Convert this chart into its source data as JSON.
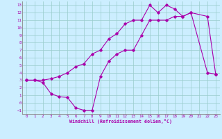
{
  "xlabel": "Windchill (Refroidissement éolien,°C)",
  "bg_color": "#cceeff",
  "line_color": "#aa00aa",
  "grid_color": "#99cccc",
  "xlim": [
    -0.5,
    23.5
  ],
  "ylim": [
    -1.5,
    13.5
  ],
  "xticks": [
    0,
    1,
    2,
    3,
    4,
    5,
    6,
    7,
    8,
    9,
    10,
    11,
    12,
    13,
    14,
    15,
    16,
    17,
    18,
    19,
    20,
    21,
    22,
    23
  ],
  "yticks": [
    -1,
    0,
    1,
    2,
    3,
    4,
    5,
    6,
    7,
    8,
    9,
    10,
    11,
    12,
    13
  ],
  "line1_x": [
    0,
    1,
    2,
    3,
    4,
    5,
    6,
    7,
    8,
    9,
    10,
    11,
    12,
    13,
    14,
    15,
    16,
    17,
    18,
    19,
    20,
    22,
    23
  ],
  "line1_y": [
    3,
    3,
    2.7,
    1.2,
    0.8,
    0.7,
    -0.7,
    -1.0,
    -1.0,
    3.5,
    5.5,
    6.5,
    7.0,
    7.0,
    9.0,
    11.0,
    11.0,
    11.0,
    11.5,
    11.5,
    12.0,
    4.0,
    3.8
  ],
  "line2_x": [
    0,
    1,
    2,
    3,
    4,
    5,
    6,
    7,
    8,
    9,
    10,
    11,
    12,
    13,
    14,
    15,
    16,
    17,
    18,
    19,
    20,
    22,
    23
  ],
  "line2_y": [
    3.0,
    3.0,
    3.0,
    3.2,
    3.5,
    4.0,
    4.8,
    5.2,
    6.5,
    7.0,
    8.5,
    9.2,
    10.5,
    11.0,
    11.0,
    13.0,
    12.0,
    13.0,
    12.5,
    11.5,
    12.0,
    11.5,
    3.8
  ],
  "marker": "D",
  "markersize": 1.8,
  "linewidth": 0.8,
  "tick_fontsize": 4.2,
  "xlabel_fontsize": 4.8
}
